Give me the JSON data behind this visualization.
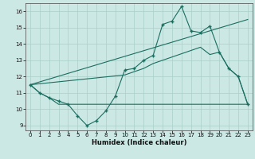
{
  "xlabel": "Humidex (Indice chaleur)",
  "bg_color": "#cce8e4",
  "grid_color": "#aacfc8",
  "line_color": "#1a6e60",
  "xlim": [
    -0.5,
    23.5
  ],
  "ylim": [
    8.7,
    16.5
  ],
  "xticks": [
    0,
    1,
    2,
    3,
    4,
    5,
    6,
    7,
    8,
    9,
    10,
    11,
    12,
    13,
    14,
    15,
    16,
    17,
    18,
    19,
    20,
    21,
    22,
    23
  ],
  "yticks": [
    9,
    10,
    11,
    12,
    13,
    14,
    15,
    16
  ],
  "line1_x": [
    0,
    1,
    2,
    3,
    4,
    5,
    6,
    7,
    8,
    9,
    10,
    11,
    12,
    13,
    14,
    15,
    16,
    17,
    18,
    19,
    20,
    21,
    22,
    23
  ],
  "line1_y": [
    11.5,
    11.0,
    10.7,
    10.5,
    10.3,
    9.6,
    9.0,
    9.3,
    9.9,
    10.8,
    12.4,
    12.5,
    13.0,
    13.3,
    15.2,
    15.4,
    16.3,
    14.8,
    14.7,
    15.1,
    13.5,
    12.5,
    12.0,
    10.3
  ],
  "line2_x": [
    0,
    1,
    2,
    3,
    4,
    5,
    6,
    7,
    8,
    9,
    10,
    11,
    12,
    13,
    14,
    15,
    16,
    17,
    18,
    19,
    20,
    21,
    22,
    23
  ],
  "line2_y": [
    11.5,
    11.0,
    10.7,
    10.3,
    10.3,
    10.3,
    10.3,
    10.3,
    10.3,
    10.3,
    10.3,
    10.3,
    10.3,
    10.3,
    10.3,
    10.3,
    10.3,
    10.3,
    10.3,
    10.3,
    10.3,
    10.3,
    10.3,
    10.3
  ],
  "line3_x": [
    0,
    23
  ],
  "line3_y": [
    11.5,
    15.5
  ],
  "line4_x": [
    0,
    10,
    11,
    12,
    13,
    14,
    15,
    16,
    17,
    18,
    19,
    20,
    21,
    22,
    23
  ],
  "line4_y": [
    11.5,
    12.1,
    12.3,
    12.5,
    12.8,
    13.0,
    13.2,
    13.4,
    13.6,
    13.8,
    13.35,
    13.5,
    12.5,
    12.0,
    10.3
  ],
  "marker": "+"
}
